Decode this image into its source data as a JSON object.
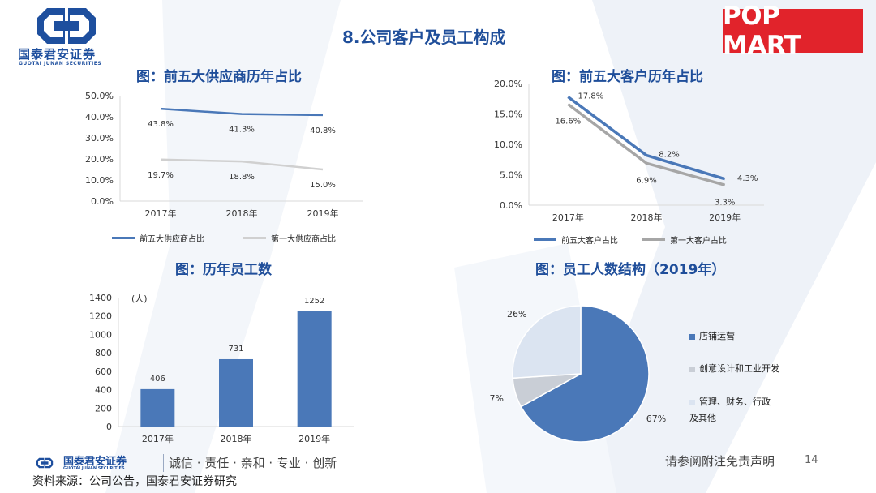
{
  "header": {
    "logo_cn": "国泰君安证券",
    "logo_en": "GUOTAI JUNAN SECURITIES",
    "title": "8.公司客户及员工构成",
    "brand": "POP MART"
  },
  "footer": {
    "logo_cn": "国泰君安证券",
    "logo_en": "GUOTAI JUNAN SECURITIES",
    "slogan": "诚信 · 责任 · 亲和 · 专业 · 创新",
    "disclaimer": "请参阅附注免责声明",
    "page_number": "14",
    "source": "资料来源：公司公告，国泰君安证券研究"
  },
  "colors": {
    "blue": "#4a78b8",
    "gray": "#c8c8c8",
    "dark_gray": "#a6a6a6",
    "light_blue": "#dbe4f1",
    "heading": "#1f4e9a",
    "brand_red": "#e1232b"
  },
  "chart_data": [
    {
      "id": "suppliers",
      "type": "line",
      "title": "图：前五大供应商历年占比",
      "categories": [
        "2017年",
        "2018年",
        "2019年"
      ],
      "y_ticks": [
        "0.0%",
        "10.0%",
        "20.0%",
        "30.0%",
        "40.0%",
        "50.0%"
      ],
      "ylim": [
        0,
        50
      ],
      "series": [
        {
          "name": "前五大供应商占比",
          "values": [
            43.8,
            41.3,
            40.8
          ],
          "labels": [
            "43.8%",
            "41.3%",
            "40.8%"
          ],
          "color": "#4a78b8"
        },
        {
          "name": "第一大供应商占比",
          "values": [
            19.7,
            18.8,
            15.0
          ],
          "labels": [
            "19.7%",
            "18.8%",
            "15.0%"
          ],
          "color": "#d0d0d0"
        }
      ],
      "grid": false,
      "legend": "bottom"
    },
    {
      "id": "customers",
      "type": "line",
      "title": "图：前五大客户历年占比",
      "categories": [
        "2017年",
        "2018年",
        "2019年"
      ],
      "y_ticks": [
        "0.0%",
        "5.0%",
        "10.0%",
        "15.0%",
        "20.0%"
      ],
      "ylim": [
        0,
        20
      ],
      "series": [
        {
          "name": "前五大客户占比",
          "values": [
            17.8,
            8.2,
            4.3
          ],
          "labels": [
            "17.8%",
            "8.2%",
            "4.3%"
          ],
          "color": "#4a78b8"
        },
        {
          "name": "第一大客户占比",
          "values": [
            16.6,
            6.9,
            3.3
          ],
          "labels": [
            "16.6%",
            "6.9%",
            "3.3%"
          ],
          "color": "#a6a6a6"
        }
      ],
      "grid": false,
      "legend": "bottom"
    },
    {
      "id": "employees",
      "type": "bar",
      "title": "图：历年员工数",
      "unit": "(人)",
      "categories": [
        "2017年",
        "2018年",
        "2019年"
      ],
      "values": [
        406,
        731,
        1252
      ],
      "labels": [
        "406",
        "731",
        "1252"
      ],
      "y_ticks": [
        "0",
        "200",
        "400",
        "600",
        "800",
        "1000",
        "1200",
        "1400"
      ],
      "ylim": [
        0,
        1400
      ],
      "color": "#4a78b8",
      "grid": false
    },
    {
      "id": "structure",
      "type": "pie",
      "title": "图：员工人数结构（2019年）",
      "slices": [
        {
          "name": "店铺运营",
          "value": 67,
          "label": "67%",
          "color": "#4a78b8"
        },
        {
          "name": "创意设计和工业开发",
          "value": 7,
          "label": "7%",
          "color": "#c9ced6"
        },
        {
          "name": "管理、财务、行政及其他",
          "value": 26,
          "label": "26%",
          "color": "#dbe4f1"
        }
      ],
      "legend": "right"
    }
  ]
}
